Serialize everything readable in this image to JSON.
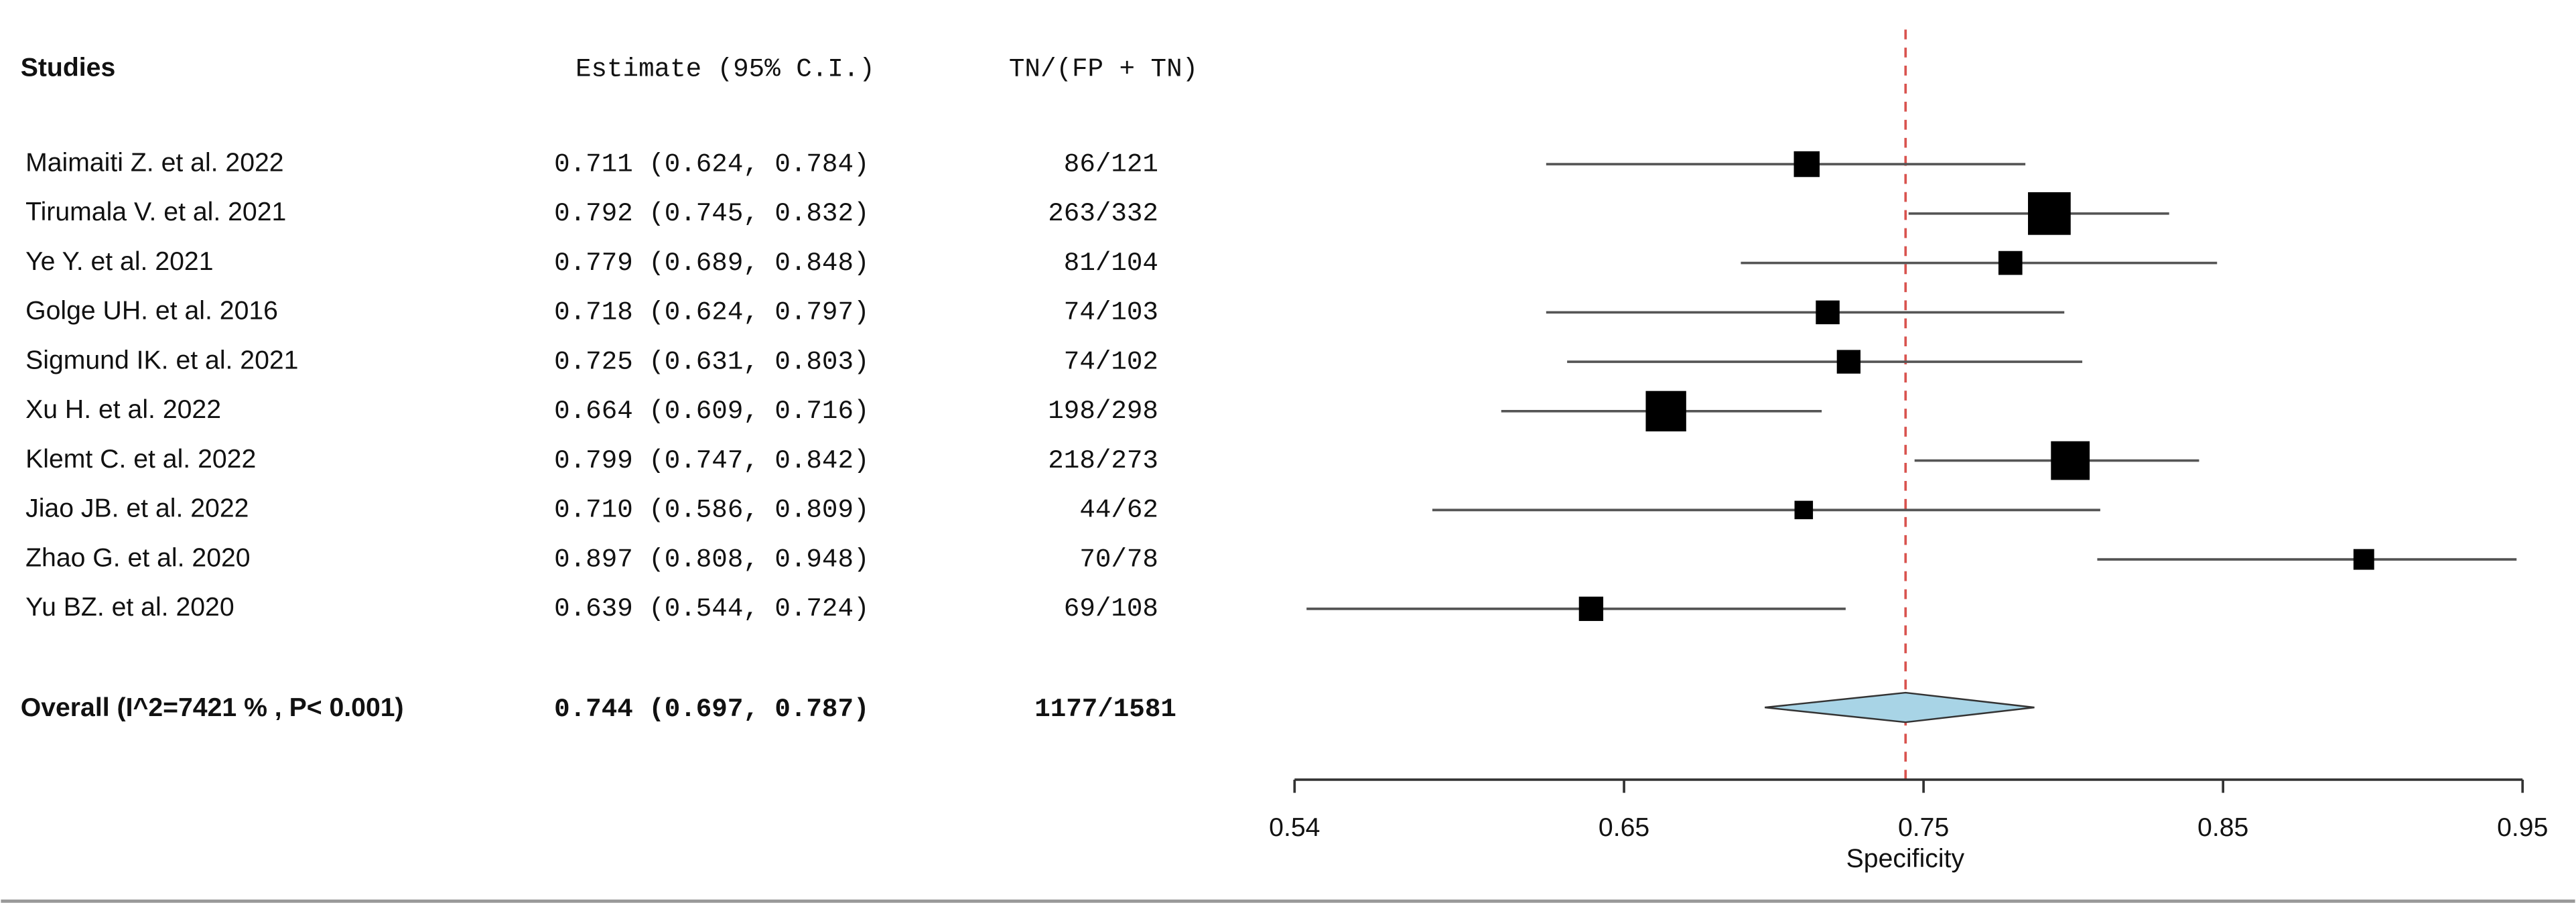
{
  "chart_data": {
    "type": "forest",
    "headers": [
      "Studies",
      "Estimate (95% C.I.)",
      "TN/(FP + TN)"
    ],
    "studies": [
      "Maimaiti Z. et al. 2022",
      "Tirumala V. et al. 2021",
      "Ye Y. et al. 2021",
      "Golge UH. et al. 2016",
      "Sigmund IK. et al. 2021",
      "Xu H. et al. 2022",
      "Klemt C. et al. 2022",
      "Jiao JB. et al. 2022",
      "Zhao G. et al. 2020",
      "Yu BZ. et al. 2020"
    ],
    "estimates": [
      0.711,
      0.792,
      0.779,
      0.718,
      0.725,
      0.664,
      0.799,
      0.71,
      0.897,
      0.639
    ],
    "lower": [
      0.624,
      0.745,
      0.689,
      0.624,
      0.631,
      0.609,
      0.747,
      0.586,
      0.808,
      0.544
    ],
    "upper": [
      0.784,
      0.832,
      0.848,
      0.797,
      0.803,
      0.716,
      0.842,
      0.809,
      0.948,
      0.724
    ],
    "estimate_labels": [
      "0.711 (0.624, 0.784)",
      "0.792 (0.745, 0.832)",
      "0.779 (0.689, 0.848)",
      "0.718 (0.624, 0.797)",
      "0.725 (0.631, 0.803)",
      "0.664 (0.609, 0.716)",
      "0.799 (0.747, 0.842)",
      "0.710 (0.586, 0.809)",
      "0.897 (0.808, 0.948)",
      "0.639 (0.544, 0.724)"
    ],
    "counts": [
      "86/121",
      "263/332",
      "81/104",
      "74/103",
      "74/102",
      "198/298",
      "218/273",
      "44/62",
      "70/78",
      "69/108"
    ],
    "overall": {
      "label": "Overall (I^2=7421 % , P< 0.001)",
      "estimate": 0.744,
      "lower": 0.697,
      "upper": 0.787,
      "estimate_label": "0.744 (0.697, 0.787)",
      "count": "1177/1581",
      "color": "#a8d4e6"
    },
    "xlabel": "Specificity",
    "xlim": [
      0.54,
      0.95
    ],
    "xticks": [
      0.54,
      0.65,
      0.75,
      0.85,
      0.95
    ],
    "reference_line_color": "#d9534f"
  }
}
